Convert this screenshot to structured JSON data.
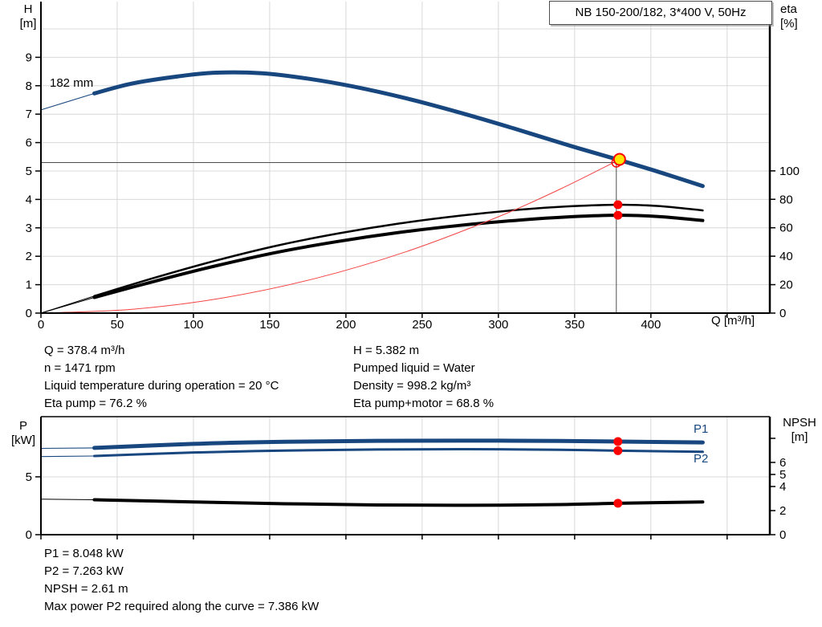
{
  "title_box": {
    "label": "NB 150-200/182, 3*400 V, 50Hz"
  },
  "top_chart": {
    "y_left_unit_line1": "H",
    "y_left_unit_line2": "[m]",
    "y_right_unit_line1": "eta",
    "y_right_unit_line2": "[%]",
    "x_axis_label": "Q [m³/h]",
    "impeller_trim_label": "182 mm"
  },
  "bottom_chart": {
    "y_left_unit_line1": "P",
    "y_left_unit_line2": "[kW]",
    "y_right_unit_line1": "NPSH",
    "y_right_unit_line2": "[m]",
    "p1_label": "P1",
    "p2_label": "P2"
  },
  "operating_point_info": {
    "left": [
      "Q = 378.4 m³/h",
      "n = 1471 rpm",
      "Liquid temperature during operation = 20 °C",
      "Eta pump = 76.2 %"
    ],
    "right": [
      "H = 5.382 m",
      "Pumped liquid = Water",
      "Density = 998.2 kg/m³",
      "Eta pump+motor = 68.8 %"
    ]
  },
  "result_info": [
    "P1 = 8.048 kW",
    "P2 = 7.263 kW",
    "NPSH = 2.61 m",
    "Max power P2 required along the curve = 7.386 kW"
  ],
  "colors": {
    "curve_blue": "#17477e",
    "curve_black": "#000000",
    "system_red": "#f44444",
    "dot_red": "#ff0000",
    "duty_yellow": "#ffe400",
    "grid": "#d8d8d8",
    "crosshair": "#4d4d4d",
    "axis": "#000000"
  },
  "chart_data": [
    {
      "id": "qh",
      "type": "line",
      "title": "QH and efficiency curves",
      "xlabel": "Q [m³/h]",
      "ylabel_left": "H [m]",
      "ylabel_right": "eta [%]",
      "legend_position": "none",
      "grid": true,
      "x_axis": {
        "min": 0,
        "max": 478,
        "ticks": [
          0,
          50,
          100,
          150,
          200,
          250,
          300,
          350,
          400,
          450
        ],
        "tick_labels": [
          "0",
          "50",
          "100",
          "150",
          "200",
          "250",
          "300",
          "350",
          "400",
          ""
        ]
      },
      "y_left": {
        "min": 0,
        "max": 10.96,
        "ticks": [
          0,
          1,
          2,
          3,
          4,
          5,
          6,
          7,
          8,
          9
        ],
        "grid": [
          1,
          2,
          3,
          4,
          5,
          6,
          7,
          8,
          9,
          10
        ]
      },
      "y_right": {
        "min": 0,
        "max": 219,
        "ticks": [
          0,
          20,
          40,
          60,
          80,
          100
        ]
      },
      "series": [
        {
          "name": "head-curve-lead-in",
          "axis": "left",
          "style": "thin_blue",
          "points": [
            [
              0,
              7.15
            ],
            [
              35,
              7.73
            ]
          ]
        },
        {
          "name": "head-curve-182mm",
          "axis": "left",
          "style": "thick_blue",
          "points": [
            [
              35,
              7.73
            ],
            [
              60,
              8.08
            ],
            [
              90,
              8.33
            ],
            [
              115,
              8.46
            ],
            [
              145,
              8.44
            ],
            [
              175,
              8.25
            ],
            [
              205,
              7.97
            ],
            [
              240,
              7.55
            ],
            [
              275,
              7.05
            ],
            [
              310,
              6.5
            ],
            [
              345,
              5.92
            ],
            [
              378.4,
              5.4
            ],
            [
              405,
              4.97
            ],
            [
              434,
              4.47
            ]
          ]
        },
        {
          "name": "eta-pump-lead-in",
          "axis": "right",
          "style": "thin_black",
          "points": [
            [
              0,
              0
            ],
            [
              35,
              12
            ]
          ]
        },
        {
          "name": "eta-pump-curve",
          "axis": "right",
          "style": "mid_black",
          "points": [
            [
              35,
              12
            ],
            [
              75,
              25
            ],
            [
              115,
              37
            ],
            [
              155,
              47.5
            ],
            [
              195,
              56
            ],
            [
              235,
              63
            ],
            [
              275,
              68.5
            ],
            [
              315,
              72.8
            ],
            [
              345,
              75
            ],
            [
              378.4,
              76.2
            ],
            [
              405,
              75.3
            ],
            [
              434,
              72.2
            ]
          ]
        },
        {
          "name": "eta-pump-motor-lead-in",
          "axis": "right",
          "style": "thin_black",
          "points": [
            [
              0,
              0
            ],
            [
              35,
              11
            ]
          ]
        },
        {
          "name": "eta-pump-motor-curve",
          "axis": "right",
          "style": "thick_black",
          "points": [
            [
              35,
              11
            ],
            [
              75,
              22.5
            ],
            [
              115,
              33.3
            ],
            [
              155,
              42.8
            ],
            [
              195,
              50.4
            ],
            [
              235,
              56.7
            ],
            [
              275,
              61.7
            ],
            [
              315,
              65.5
            ],
            [
              345,
              67.6
            ],
            [
              378.4,
              68.8
            ],
            [
              405,
              67.9
            ],
            [
              434,
              65.1
            ]
          ]
        },
        {
          "name": "system-curve",
          "axis": "left",
          "style": "thin_red",
          "points": [
            [
              0,
              0
            ],
            [
              60,
              0.135
            ],
            [
              120,
              0.54
            ],
            [
              180,
              1.22
            ],
            [
              240,
              2.17
            ],
            [
              300,
              3.39
            ],
            [
              340,
              4.35
            ],
            [
              376,
              5.31
            ]
          ]
        }
      ],
      "duty_point": {
        "q": 378.4,
        "h": 5.382
      },
      "markers": [
        {
          "axis": "right",
          "q": 378.4,
          "v": 76.2
        },
        {
          "axis": "right",
          "q": 378.4,
          "v": 68.8
        }
      ]
    },
    {
      "id": "power-npsh",
      "type": "line",
      "title": "Power and NPSH curves",
      "xlabel": "",
      "ylabel_left": "P [kW]",
      "ylabel_right": "NPSH [m]",
      "legend_position": "inline-right",
      "grid": true,
      "x_axis": {
        "min": 0,
        "max": 478,
        "ticks": [
          0,
          50,
          100,
          150,
          200,
          250,
          300,
          350,
          400,
          450
        ],
        "tick_labels": [
          "",
          "",
          "",
          "",
          "",
          "",
          "",
          "",
          "",
          ""
        ]
      },
      "y_left": {
        "min": 0,
        "max": 10.2,
        "ticks": [
          0,
          5
        ],
        "grid": [
          5
        ]
      },
      "y_right": {
        "min": 0,
        "max": 9.8,
        "ticks": [
          0,
          2,
          4,
          5,
          6,
          8
        ],
        "tick_labels": [
          "0",
          "2",
          "4",
          "5",
          "6",
          ""
        ]
      },
      "series": [
        {
          "name": "p1-lead-in",
          "axis": "left",
          "style": "thin_blue",
          "points": [
            [
              0,
              7.46
            ],
            [
              35,
              7.5
            ]
          ]
        },
        {
          "name": "p1-curve",
          "axis": "left",
          "style": "thick_blue",
          "points": [
            [
              35,
              7.5
            ],
            [
              100,
              7.85
            ],
            [
              160,
              8.03
            ],
            [
              220,
              8.11
            ],
            [
              280,
              8.13
            ],
            [
              340,
              8.1
            ],
            [
              378.4,
              8.048
            ],
            [
              434,
              7.97
            ]
          ]
        },
        {
          "name": "p2-lead-in",
          "axis": "left",
          "style": "thin_blue",
          "points": [
            [
              0,
              6.75
            ],
            [
              35,
              6.8
            ]
          ]
        },
        {
          "name": "p2-curve",
          "axis": "left",
          "style": "mid_blue",
          "points": [
            [
              35,
              6.8
            ],
            [
              100,
              7.1
            ],
            [
              160,
              7.27
            ],
            [
              220,
              7.36
            ],
            [
              280,
              7.386
            ],
            [
              340,
              7.34
            ],
            [
              378.4,
              7.263
            ],
            [
              434,
              7.16
            ]
          ]
        },
        {
          "name": "npsh-lead-in",
          "axis": "right",
          "style": "thin_black",
          "points": [
            [
              0,
              2.95
            ],
            [
              35,
              2.9
            ]
          ]
        },
        {
          "name": "npsh-curve",
          "axis": "right",
          "style": "thick_black",
          "points": [
            [
              35,
              2.9
            ],
            [
              100,
              2.72
            ],
            [
              160,
              2.57
            ],
            [
              220,
              2.47
            ],
            [
              280,
              2.44
            ],
            [
              340,
              2.5
            ],
            [
              378.4,
              2.61
            ],
            [
              434,
              2.72
            ]
          ]
        }
      ],
      "markers": [
        {
          "axis": "left",
          "q": 378.4,
          "v": 8.048
        },
        {
          "axis": "left",
          "q": 378.4,
          "v": 7.263
        },
        {
          "axis": "right",
          "q": 378.4,
          "v": 2.61
        }
      ]
    }
  ]
}
